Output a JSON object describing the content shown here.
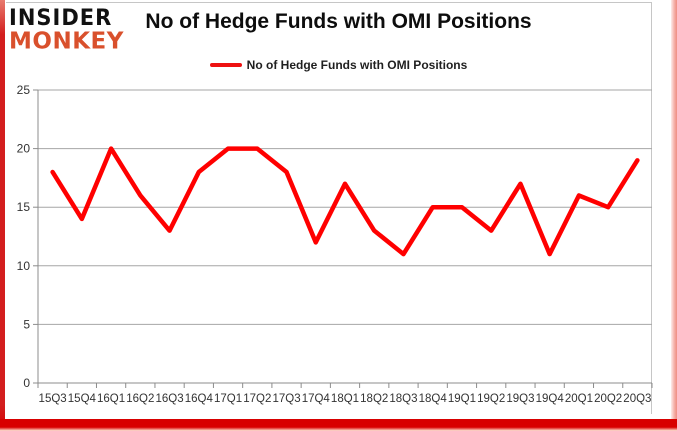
{
  "branding": {
    "logo_line1": "INSIDER",
    "logo_line2": "MONKEY"
  },
  "header": {
    "title": "No of Hedge Funds with OMI Positions"
  },
  "legend": {
    "label": "No of Hedge Funds with OMI Positions"
  },
  "colors": {
    "line": "#ff0000",
    "logo_accent": "#d9502c",
    "frame_red": "#d80000",
    "grid": "#a6a6a6",
    "axis": "#8c8c8c",
    "tick_label": "#333333"
  },
  "chart_data": {
    "type": "line",
    "title": "No of Hedge Funds with OMI Positions",
    "categories": [
      "15Q3",
      "15Q4",
      "16Q1",
      "16Q2",
      "16Q3",
      "16Q4",
      "17Q1",
      "17Q2",
      "17Q3",
      "17Q4",
      "18Q1",
      "18Q2",
      "18Q3",
      "18Q4",
      "19Q1",
      "19Q2",
      "19Q3",
      "19Q4",
      "20Q1",
      "20Q2",
      "20Q3"
    ],
    "series": [
      {
        "name": "No of Hedge Funds with OMI Positions",
        "values": [
          18,
          14,
          20,
          16,
          13,
          18,
          20,
          20,
          18,
          12,
          17,
          13,
          11,
          15,
          15,
          13,
          17,
          11,
          16,
          15,
          19
        ]
      }
    ],
    "xlabel": "",
    "ylabel": "",
    "ylim": [
      0,
      25
    ],
    "ytick_interval": 5,
    "grid": true,
    "legend_position": "top-center"
  }
}
